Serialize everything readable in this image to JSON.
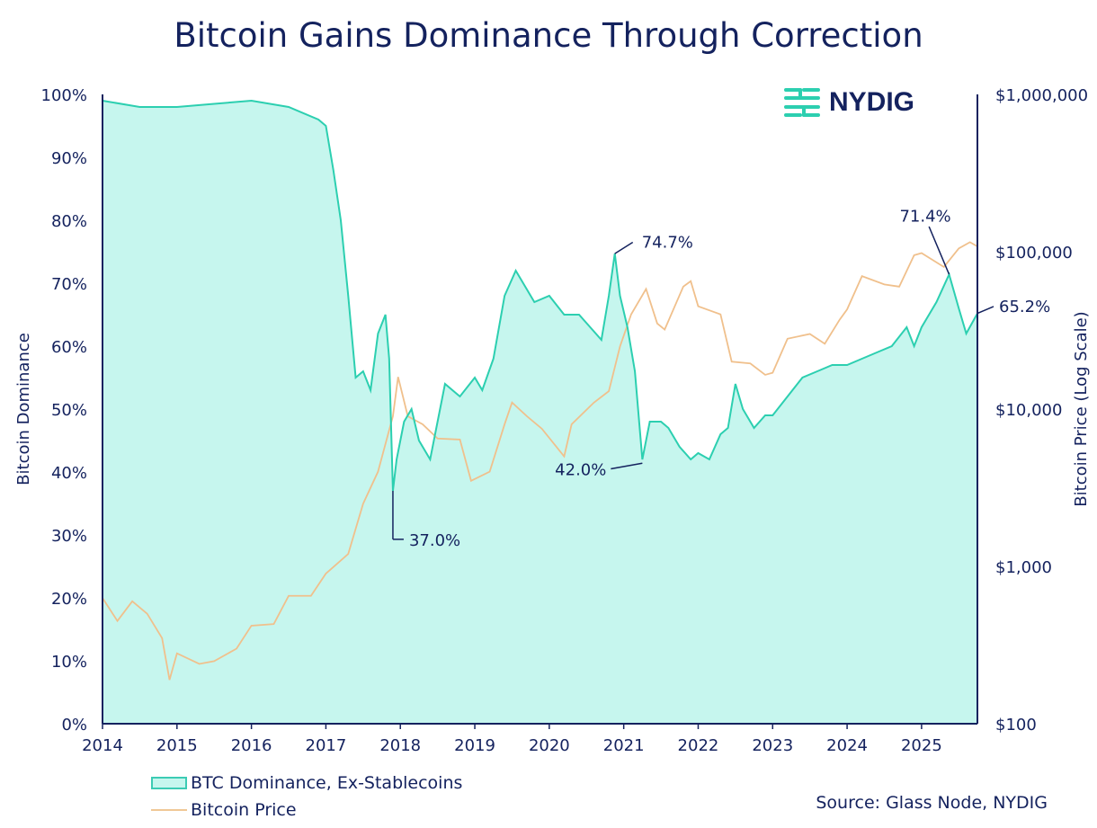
{
  "chart_data": {
    "type": "area+line",
    "title": "Bitcoin Gains Dominance Through Correction",
    "ylabel": "Bitcoin Dominance",
    "y2label": "Bitcoin Price (Log Scale)",
    "xlim": [
      2014,
      2025.75
    ],
    "ylim": [
      0,
      100
    ],
    "y2lim": [
      100,
      1000000
    ],
    "y2scale": "log",
    "x_ticks": [
      "2014",
      "2015",
      "2016",
      "2017",
      "2018",
      "2019",
      "2020",
      "2021",
      "2022",
      "2023",
      "2024",
      "2025"
    ],
    "y_ticks": [
      "0%",
      "10%",
      "20%",
      "30%",
      "40%",
      "50%",
      "60%",
      "70%",
      "80%",
      "90%",
      "100%"
    ],
    "y2_ticks": [
      "$100",
      "$1,000",
      "$10,000",
      "$100,000",
      "$1,000,000"
    ],
    "grid": false,
    "legend_placement": "bottom-left",
    "colors": {
      "dominance_line": "#2ccfb0",
      "dominance_fill": "#c6f6ee",
      "price": "#f0c08c",
      "text": "#14225e"
    },
    "series": [
      {
        "name": "BTC Dominance, Ex-Stablecoins",
        "axis": "left",
        "x": [
          2014.0,
          2014.5,
          2015.0,
          2015.5,
          2016.0,
          2016.5,
          2016.9,
          2017.0,
          2017.1,
          2017.2,
          2017.3,
          2017.4,
          2017.5,
          2017.6,
          2017.7,
          2017.8,
          2017.85,
          2017.9,
          2017.95,
          2018.05,
          2018.15,
          2018.25,
          2018.4,
          2018.5,
          2018.6,
          2018.8,
          2019.0,
          2019.1,
          2019.25,
          2019.4,
          2019.55,
          2019.7,
          2019.8,
          2020.0,
          2020.2,
          2020.4,
          2020.55,
          2020.7,
          2020.8,
          2020.88,
          2020.95,
          2021.05,
          2021.15,
          2021.25,
          2021.35,
          2021.5,
          2021.6,
          2021.75,
          2021.9,
          2022.0,
          2022.15,
          2022.3,
          2022.4,
          2022.5,
          2022.6,
          2022.75,
          2022.9,
          2023.0,
          2023.2,
          2023.4,
          2023.6,
          2023.8,
          2024.0,
          2024.2,
          2024.4,
          2024.6,
          2024.8,
          2024.9,
          2025.0,
          2025.1,
          2025.2,
          2025.37,
          2025.5,
          2025.6,
          2025.75
        ],
        "values": [
          99,
          98,
          98,
          98.5,
          99,
          98,
          96,
          95,
          88,
          80,
          68,
          55,
          56,
          53,
          62,
          65,
          58,
          37,
          42,
          48,
          50,
          45,
          42,
          48,
          54,
          52,
          55,
          53,
          58,
          68,
          72,
          69,
          67,
          68,
          65,
          65,
          63,
          61,
          68,
          74.7,
          68,
          63,
          56,
          42,
          48,
          48,
          47,
          44,
          42,
          43,
          42,
          46,
          47,
          54,
          50,
          47,
          49,
          49,
          52,
          55,
          56,
          57,
          57,
          58,
          59,
          60,
          63,
          60,
          63,
          65,
          67,
          71.4,
          66,
          62,
          65.2
        ]
      },
      {
        "name": "Bitcoin Price",
        "axis": "right",
        "x": [
          2014.0,
          2014.2,
          2014.4,
          2014.6,
          2014.8,
          2014.9,
          2015.0,
          2015.3,
          2015.5,
          2015.8,
          2016.0,
          2016.3,
          2016.5,
          2016.8,
          2017.0,
          2017.3,
          2017.5,
          2017.7,
          2017.9,
          2017.97,
          2018.1,
          2018.3,
          2018.5,
          2018.8,
          2018.95,
          2019.2,
          2019.4,
          2019.5,
          2019.7,
          2019.9,
          2020.2,
          2020.3,
          2020.6,
          2020.8,
          2020.95,
          2021.1,
          2021.3,
          2021.45,
          2021.55,
          2021.8,
          2021.9,
          2022.0,
          2022.3,
          2022.45,
          2022.7,
          2022.9,
          2023.0,
          2023.2,
          2023.5,
          2023.7,
          2023.9,
          2024.0,
          2024.2,
          2024.5,
          2024.7,
          2024.9,
          2025.0,
          2025.3,
          2025.5,
          2025.65,
          2025.75
        ],
        "values": [
          630,
          450,
          600,
          500,
          350,
          190,
          280,
          240,
          250,
          300,
          420,
          430,
          650,
          650,
          900,
          1200,
          2500,
          4000,
          9000,
          16000,
          9000,
          8000,
          6500,
          6400,
          3500,
          4000,
          8000,
          11000,
          9000,
          7500,
          5000,
          8000,
          11000,
          13000,
          25000,
          40000,
          58000,
          35000,
          32000,
          60000,
          65000,
          45000,
          40000,
          20000,
          19500,
          16500,
          17000,
          28000,
          30000,
          26000,
          37000,
          43000,
          70000,
          62000,
          60000,
          95000,
          98000,
          80000,
          105000,
          115000,
          108000
        ]
      }
    ],
    "annotations": [
      {
        "text": "74.7%",
        "x": 2020.88,
        "y": 74.7
      },
      {
        "text": "37.0%",
        "x": 2017.9,
        "y": 37.0
      },
      {
        "text": "42.0%",
        "x": 2021.25,
        "y": 42.0
      },
      {
        "text": "71.4%",
        "x": 2025.37,
        "y": 71.4
      },
      {
        "text": "65.2%",
        "x": 2025.75,
        "y": 65.2
      }
    ]
  },
  "legend": {
    "dominance": "BTC Dominance, Ex-Stablecoins",
    "price": "Bitcoin Price"
  },
  "source": "Source: Glass Node, NYDIG",
  "logo": "NYDIG"
}
